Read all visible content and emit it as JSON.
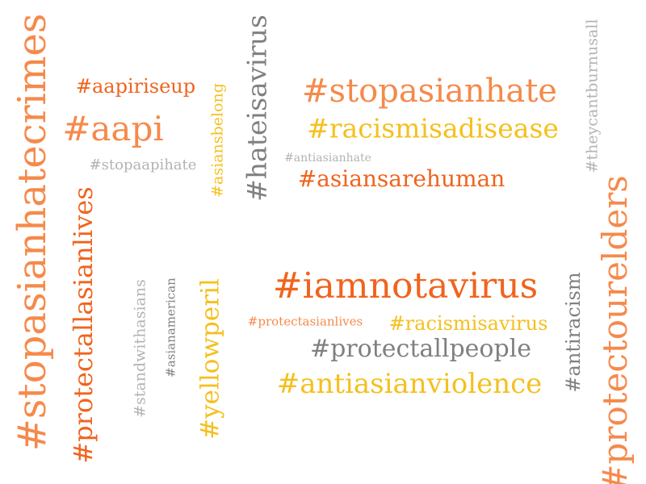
{
  "palette": {
    "dark_orange": "#F0641E",
    "orange": "#F58A4B",
    "yellow": "#F5C01E",
    "gray": "#808080",
    "light_gray": "#B3B3B3"
  },
  "words": [
    {
      "text": "#stopasianhatecrimes",
      "color": "#F58A4B",
      "rotated": true
    },
    {
      "text": "#aapiriseup",
      "color": "#F0641E",
      "rotated": false
    },
    {
      "text": "#aapi",
      "color": "#F58A4B",
      "rotated": false
    },
    {
      "text": "#stopaapihate",
      "color": "#B3B3B3",
      "rotated": false
    },
    {
      "text": "#asiansbelong",
      "color": "#F5C01E",
      "rotated": true
    },
    {
      "text": "#hateisavirus",
      "color": "#808080",
      "rotated": true
    },
    {
      "text": "#stopasianhate",
      "color": "#F58A4B",
      "rotated": false
    },
    {
      "text": "#racismisadisease",
      "color": "#F5C01E",
      "rotated": false
    },
    {
      "text": "#antiasianhate",
      "color": "#B3B3B3",
      "rotated": false
    },
    {
      "text": "#asiansarehuman",
      "color": "#F0641E",
      "rotated": false
    },
    {
      "text": "#theycantburnusall",
      "color": "#B3B3B3",
      "rotated": true
    },
    {
      "text": "#protectallasianlives",
      "color": "#F0641E",
      "rotated": true
    },
    {
      "text": "#standwithasians",
      "color": "#B3B3B3",
      "rotated": true
    },
    {
      "text": "#asianamerican",
      "color": "#808080",
      "rotated": true
    },
    {
      "text": "#yellowperil",
      "color": "#F5C01E",
      "rotated": true
    },
    {
      "text": "#iamnotavirus",
      "color": "#F0641E",
      "rotated": false
    },
    {
      "text": "#protectasianlives",
      "color": "#F58A4B",
      "rotated": false
    },
    {
      "text": "#racismisavirus",
      "color": "#F5C01E",
      "rotated": false
    },
    {
      "text": "#protectallpeople",
      "color": "#808080",
      "rotated": false
    },
    {
      "text": "#antiasianviolence",
      "color": "#F5C01E",
      "rotated": false
    },
    {
      "text": "#antiracism",
      "color": "#808080",
      "rotated": true
    },
    {
      "text": "#protectourelders",
      "color": "#F58A4B",
      "rotated": true
    }
  ]
}
